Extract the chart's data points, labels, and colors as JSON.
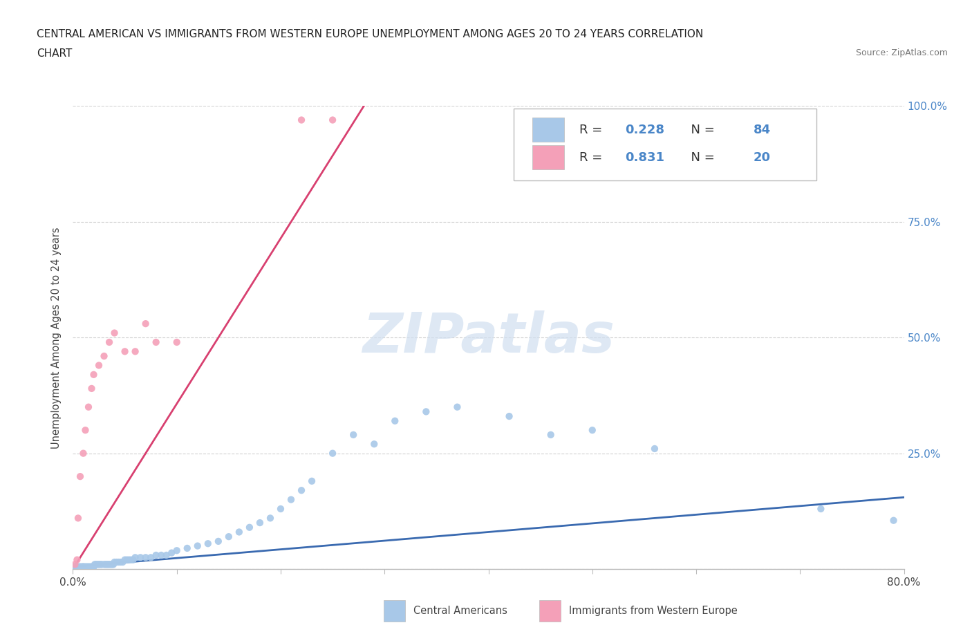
{
  "title_line1": "CENTRAL AMERICAN VS IMMIGRANTS FROM WESTERN EUROPE UNEMPLOYMENT AMONG AGES 20 TO 24 YEARS CORRELATION",
  "title_line2": "CHART",
  "source": "Source: ZipAtlas.com",
  "ylabel": "Unemployment Among Ages 20 to 24 years",
  "watermark": "ZIPatlas",
  "xlim": [
    0.0,
    0.8
  ],
  "ylim": [
    0.0,
    1.0
  ],
  "series1_color": "#a8c8e8",
  "series2_color": "#f4a0b8",
  "trendline1_color": "#3a6ab0",
  "trendline2_color": "#d84070",
  "R1": 0.228,
  "N1": 84,
  "R2": 0.831,
  "N2": 20,
  "legend_label1": "Central Americans",
  "legend_label2": "Immigrants from Western Europe",
  "marker_size": 55,
  "background_color": "#ffffff",
  "grid_color": "#cccccc",
  "series1_x": [
    0.001,
    0.002,
    0.003,
    0.004,
    0.005,
    0.006,
    0.007,
    0.008,
    0.009,
    0.01,
    0.01,
    0.011,
    0.012,
    0.013,
    0.014,
    0.015,
    0.016,
    0.017,
    0.018,
    0.019,
    0.02,
    0.02,
    0.021,
    0.022,
    0.023,
    0.024,
    0.025,
    0.026,
    0.027,
    0.028,
    0.03,
    0.031,
    0.032,
    0.033,
    0.034,
    0.035,
    0.036,
    0.037,
    0.038,
    0.039,
    0.04,
    0.042,
    0.044,
    0.046,
    0.048,
    0.05,
    0.052,
    0.054,
    0.056,
    0.058,
    0.06,
    0.065,
    0.07,
    0.075,
    0.08,
    0.085,
    0.09,
    0.095,
    0.1,
    0.11,
    0.12,
    0.13,
    0.14,
    0.15,
    0.16,
    0.17,
    0.18,
    0.19,
    0.2,
    0.21,
    0.22,
    0.23,
    0.25,
    0.27,
    0.29,
    0.31,
    0.34,
    0.37,
    0.42,
    0.46,
    0.5,
    0.56,
    0.72,
    0.79
  ],
  "series1_y": [
    0.005,
    0.005,
    0.005,
    0.005,
    0.005,
    0.005,
    0.005,
    0.005,
    0.005,
    0.005,
    0.005,
    0.005,
    0.005,
    0.005,
    0.005,
    0.005,
    0.005,
    0.005,
    0.005,
    0.005,
    0.005,
    0.005,
    0.01,
    0.01,
    0.01,
    0.01,
    0.01,
    0.01,
    0.01,
    0.01,
    0.01,
    0.01,
    0.01,
    0.01,
    0.01,
    0.01,
    0.01,
    0.01,
    0.01,
    0.01,
    0.015,
    0.015,
    0.015,
    0.015,
    0.015,
    0.02,
    0.02,
    0.02,
    0.02,
    0.02,
    0.025,
    0.025,
    0.025,
    0.025,
    0.03,
    0.03,
    0.03,
    0.035,
    0.04,
    0.045,
    0.05,
    0.055,
    0.06,
    0.07,
    0.08,
    0.09,
    0.1,
    0.11,
    0.13,
    0.15,
    0.17,
    0.19,
    0.25,
    0.29,
    0.27,
    0.32,
    0.34,
    0.35,
    0.33,
    0.29,
    0.3,
    0.26,
    0.13,
    0.105
  ],
  "series2_x": [
    0.002,
    0.004,
    0.005,
    0.007,
    0.01,
    0.012,
    0.015,
    0.018,
    0.02,
    0.025,
    0.03,
    0.035,
    0.04,
    0.05,
    0.06,
    0.07,
    0.08,
    0.1,
    0.22,
    0.25
  ],
  "series2_y": [
    0.01,
    0.02,
    0.11,
    0.2,
    0.25,
    0.3,
    0.35,
    0.39,
    0.42,
    0.44,
    0.46,
    0.49,
    0.51,
    0.47,
    0.47,
    0.53,
    0.49,
    0.49,
    0.97,
    0.97
  ],
  "trendline1_x": [
    0.0,
    0.8
  ],
  "trendline1_y": [
    0.005,
    0.155
  ],
  "trendline2_x": [
    0.0,
    0.28
  ],
  "trendline2_y": [
    -0.02,
    1.0
  ]
}
